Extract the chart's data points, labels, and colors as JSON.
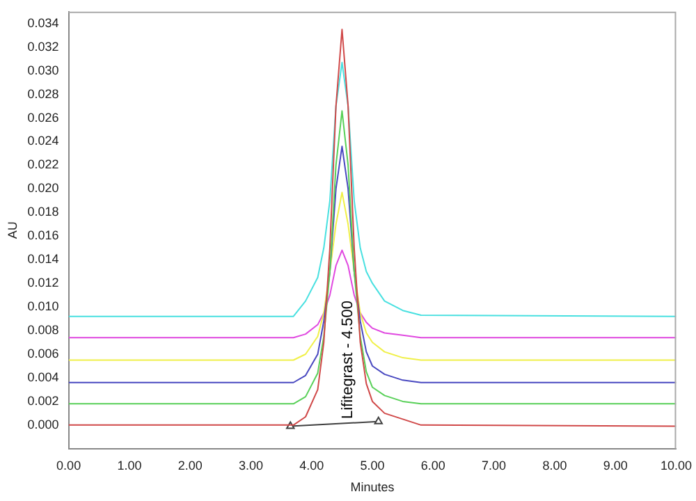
{
  "chart_data": {
    "type": "line",
    "xlabel": "Minutes",
    "ylabel": "AU",
    "x": [
      0,
      3.7,
      3.9,
      4.1,
      4.2,
      4.3,
      4.4,
      4.5,
      4.6,
      4.7,
      4.8,
      4.9,
      5.0,
      5.2,
      5.5,
      5.8,
      10
    ],
    "series": [
      {
        "color": "#d04848",
        "values": [
          0,
          0,
          0.0007,
          0.003,
          0.007,
          0.015,
          0.027,
          0.0335,
          0.027,
          0.015,
          0.007,
          0.0035,
          0.002,
          0.001,
          0.0005,
          0,
          -0.0001
        ]
      },
      {
        "color": "#58d058",
        "values": [
          0.0018,
          0.0018,
          0.0024,
          0.0044,
          0.0075,
          0.013,
          0.022,
          0.0266,
          0.022,
          0.013,
          0.0075,
          0.0045,
          0.0032,
          0.0025,
          0.002,
          0.0018,
          0.0018
        ]
      },
      {
        "color": "#4848c0",
        "values": [
          0.0036,
          0.0036,
          0.0042,
          0.006,
          0.0088,
          0.013,
          0.02,
          0.0236,
          0.02,
          0.013,
          0.0088,
          0.0062,
          0.005,
          0.0043,
          0.0038,
          0.0036,
          0.0036
        ]
      },
      {
        "color": "#f0f048",
        "values": [
          0.0055,
          0.0055,
          0.006,
          0.0075,
          0.0095,
          0.013,
          0.017,
          0.0197,
          0.017,
          0.013,
          0.0095,
          0.0078,
          0.007,
          0.0062,
          0.0057,
          0.0055,
          0.0055
        ]
      },
      {
        "color": "#e048e0",
        "values": [
          0.0074,
          0.0074,
          0.0077,
          0.0085,
          0.0095,
          0.011,
          0.0135,
          0.0148,
          0.0135,
          0.011,
          0.0095,
          0.0087,
          0.0082,
          0.0078,
          0.0076,
          0.0074,
          0.0074
        ]
      },
      {
        "color": "#48e0e0",
        "values": [
          0.0092,
          0.0092,
          0.0105,
          0.0125,
          0.015,
          0.019,
          0.027,
          0.0307,
          0.027,
          0.019,
          0.015,
          0.013,
          0.012,
          0.0105,
          0.0097,
          0.0093,
          0.0092
        ]
      },
      {
        "color": "#404040",
        "x": [
          3.65,
          5.1
        ],
        "values": [
          -0.0001,
          0.0003
        ],
        "marker": "triangle"
      }
    ],
    "annotations": [
      {
        "text": "Lifitegrast - 4.500",
        "x": 4.5,
        "y": 0.0005
      }
    ],
    "marker": "none",
    "legend": false,
    "grid": false,
    "xlim": [
      0,
      10
    ],
    "xticks": [
      {
        "value": 0,
        "label": "0.00"
      },
      {
        "value": 1,
        "label": "1.00"
      },
      {
        "value": 2,
        "label": "2.00"
      },
      {
        "value": 3,
        "label": "3.00"
      },
      {
        "value": 4,
        "label": "4.00"
      },
      {
        "value": 5,
        "label": "5.00"
      },
      {
        "value": 6,
        "label": "6.00"
      },
      {
        "value": 7,
        "label": "7.00"
      },
      {
        "value": 8,
        "label": "8.00"
      },
      {
        "value": 9,
        "label": "9.00"
      },
      {
        "value": 10,
        "label": "10.00"
      }
    ],
    "ylim": [
      -0.002,
      0.035
    ],
    "yticks": [
      {
        "value": 0,
        "label": "0.000"
      },
      {
        "value": 0.002,
        "label": "0.002"
      },
      {
        "value": 0.004,
        "label": "0.004"
      },
      {
        "value": 0.006,
        "label": "0.006"
      },
      {
        "value": 0.008,
        "label": "0.008"
      },
      {
        "value": 0.01,
        "label": "0.010"
      },
      {
        "value": 0.012,
        "label": "0.012"
      },
      {
        "value": 0.014,
        "label": "0.014"
      },
      {
        "value": 0.016,
        "label": "0.016"
      },
      {
        "value": 0.018,
        "label": "0.018"
      },
      {
        "value": 0.02,
        "label": "0.020"
      },
      {
        "value": 0.022,
        "label": "0.022"
      },
      {
        "value": 0.024,
        "label": "0.024"
      },
      {
        "value": 0.026,
        "label": "0.026"
      },
      {
        "value": 0.028,
        "label": "0.028"
      },
      {
        "value": 0.03,
        "label": "0.030"
      },
      {
        "value": 0.032,
        "label": "0.032"
      },
      {
        "value": 0.034,
        "label": "0.034"
      }
    ]
  }
}
